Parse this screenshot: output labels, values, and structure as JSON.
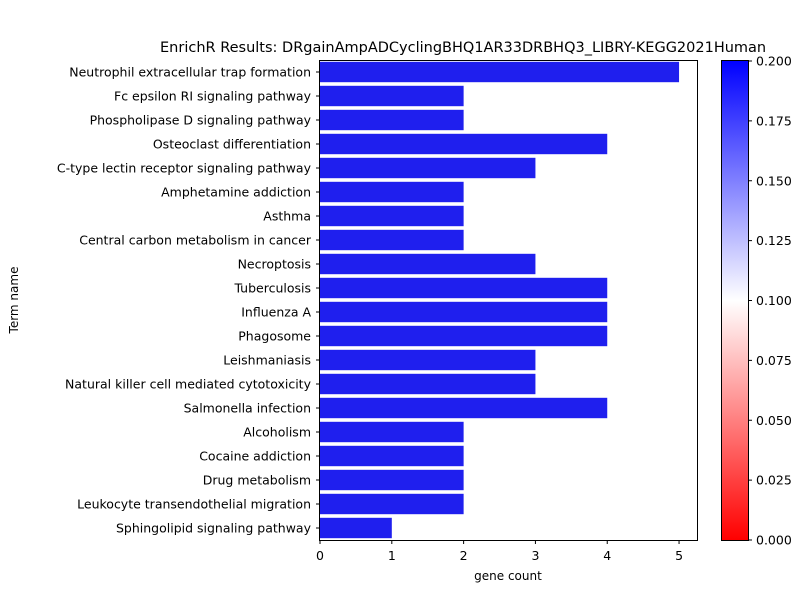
{
  "chart_data": {
    "type": "bar",
    "orientation": "horizontal",
    "title": "EnrichR Results: DRgainAmpADCyclingBHQ1AR33DRBHQ3_LIBRY-KEGG2021Human",
    "xlabel": "gene count",
    "ylabel": "Term name",
    "xlim": [
      0,
      5.25
    ],
    "xticks": [
      0,
      1,
      2,
      3,
      4,
      5
    ],
    "grid": false,
    "categories": [
      "Neutrophil extracellular trap formation",
      "Fc epsilon RI signaling pathway",
      "Phospholipase D signaling pathway",
      "Osteoclast differentiation",
      "C-type lectin receptor signaling pathway",
      "Amphetamine addiction",
      "Asthma",
      "Central carbon metabolism in cancer",
      "Necroptosis",
      "Tuberculosis",
      "Influenza A",
      "Phagosome",
      "Leishmaniasis",
      "Natural killer cell mediated cytotoxicity",
      "Salmonella infection",
      "Alcoholism",
      "Cocaine addiction",
      "Drug metabolism",
      "Leukocyte transendothelial migration",
      "Sphingolipid signaling pathway"
    ],
    "values": [
      5,
      2,
      2,
      4,
      3,
      2,
      2,
      2,
      3,
      4,
      4,
      4,
      3,
      3,
      4,
      2,
      2,
      2,
      2,
      1
    ],
    "bar_color": "#1f1fee",
    "colorbar": {
      "range": [
        0.0,
        0.2
      ],
      "ticks": [
        "0.000",
        "0.025",
        "0.050",
        "0.075",
        "0.100",
        "0.125",
        "0.150",
        "0.175",
        "0.200"
      ],
      "colors": [
        "#ff0000",
        "#ffffff",
        "#0000ff"
      ]
    }
  }
}
